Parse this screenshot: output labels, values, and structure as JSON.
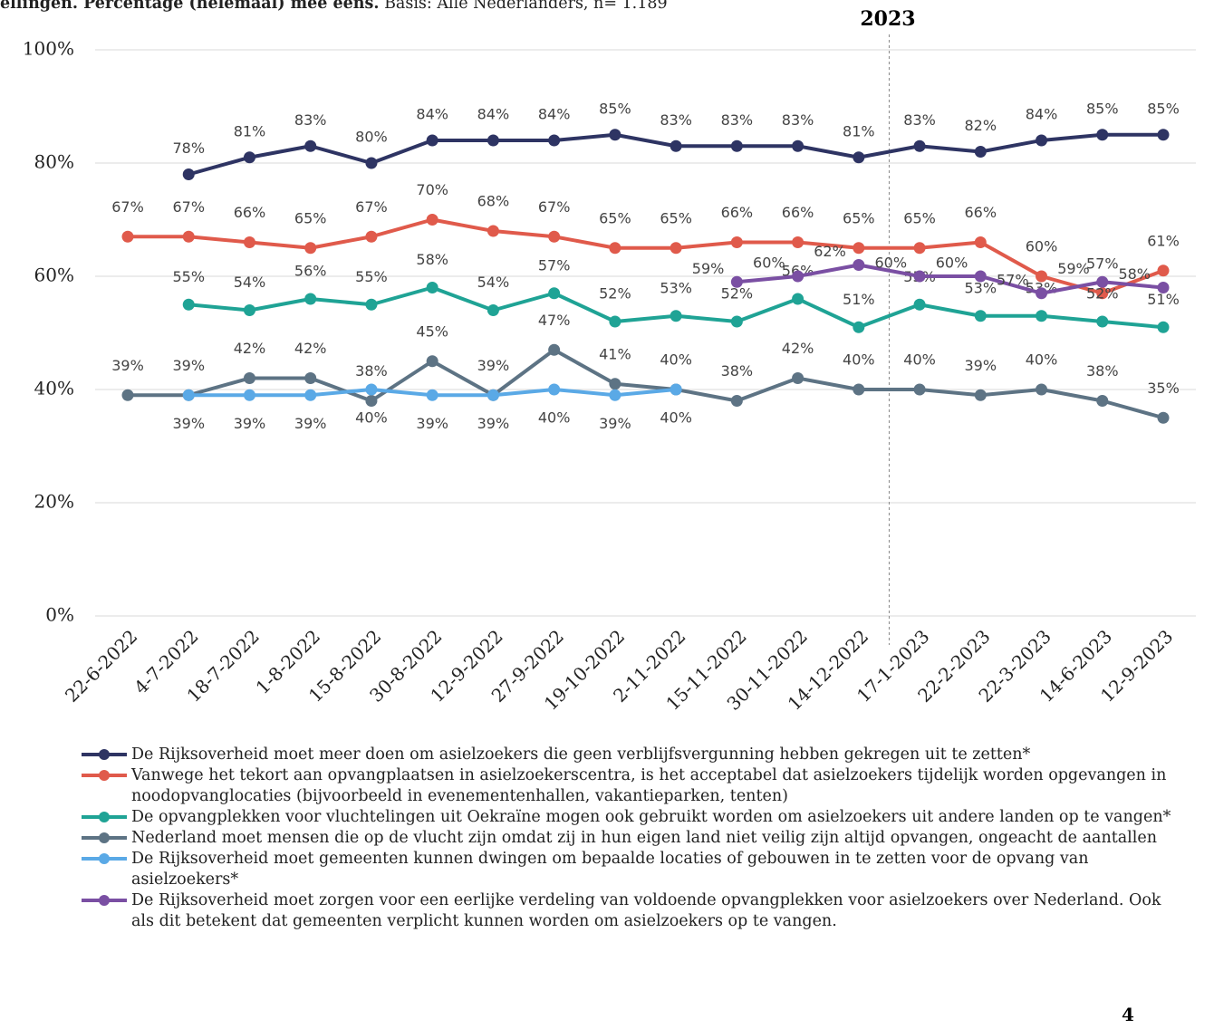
{
  "chart_data": {
    "type": "line",
    "title": "ellingen. Percentage (helemaal) mee eens.",
    "subtitle": "Basis: Alle Nederlanders, n= 1.189",
    "annotation": "2023",
    "page_number": "4",
    "categories": [
      "22-6-2022",
      "4-7-2022",
      "18-7-2022",
      "1-8-2022",
      "15-8-2022",
      "30-8-2022",
      "12-9-2022",
      "27-9-2022",
      "19-10-2022",
      "2-11-2022",
      "15-11-2022",
      "30-11-2022",
      "14-12-2022",
      "17-1-2023",
      "22-2-2023",
      "22-3-2023",
      "14-6-2023",
      "12-9-2023"
    ],
    "ylim": [
      0,
      100
    ],
    "yticks": [
      {
        "value": 0,
        "label": "0%"
      },
      {
        "value": 20,
        "label": "20%"
      },
      {
        "value": 40,
        "label": "40%"
      },
      {
        "value": 60,
        "label": "60%"
      },
      {
        "value": 80,
        "label": "80%"
      },
      {
        "value": 100,
        "label": "100%"
      }
    ],
    "grid": true,
    "series": [
      {
        "name": "De Rijksoverheid moet meer doen om asielzoekers die geen verblijfsvergunning hebben gekregen uit te zetten*",
        "color": "#2e3463",
        "values": [
          null,
          78,
          81,
          83,
          80,
          84,
          84,
          84,
          85,
          83,
          83,
          83,
          81,
          83,
          82,
          84,
          85,
          85
        ],
        "value_labels": [
          null,
          "78%",
          "81%",
          "83%",
          "80%",
          "84%",
          "84%",
          "84%",
          "85%",
          "83%",
          "83%",
          "83%",
          "81%",
          "83%",
          "82%",
          "84%",
          "85%",
          "85%"
        ]
      },
      {
        "name": "Vanwege het tekort aan opvangplaatsen in asielzoekerscentra, is het acceptabel dat asielzoekers tijdelijk worden opgevangen in noodopvanglocaties (bijvoorbeeld in evenementenhallen, vakantieparken, tenten)",
        "color": "#e05a4b",
        "values": [
          67,
          67,
          66,
          65,
          67,
          70,
          68,
          67,
          65,
          65,
          66,
          66,
          65,
          65,
          66,
          60,
          57,
          61
        ],
        "value_labels": [
          "67%",
          "67%",
          "66%",
          "65%",
          "67%",
          "70%",
          "68%",
          "67%",
          "65%",
          "65%",
          "66%",
          "66%",
          "65%",
          "65%",
          "66%",
          "60%",
          "57%",
          "61%"
        ]
      },
      {
        "name": "De opvangplekken voor vluchtelingen uit Oekraïne mogen ook gebruikt worden om asielzoekers uit andere landen op te vangen*",
        "color": "#1fa395",
        "values": [
          null,
          55,
          54,
          56,
          55,
          58,
          54,
          57,
          52,
          53,
          52,
          56,
          51,
          55,
          53,
          53,
          52,
          51
        ],
        "value_labels": [
          null,
          "55%",
          "54%",
          "56%",
          "55%",
          "58%",
          "54%",
          "57%",
          "52%",
          "53%",
          "52%",
          "56%",
          "51%",
          "55%",
          "53%",
          "53%",
          "52%",
          "51%"
        ]
      },
      {
        "name": "Nederland moet mensen die op de vlucht zijn omdat zij in hun eigen land niet veilig zijn altijd opvangen, ongeacht de aantallen",
        "color": "#5d7384",
        "values": [
          39,
          39,
          42,
          42,
          38,
          45,
          39,
          47,
          41,
          40,
          38,
          42,
          40,
          40,
          39,
          40,
          38,
          35
        ],
        "value_labels": [
          "39%",
          "39%",
          "42%",
          "42%",
          "38%",
          "45%",
          "39%",
          "47%",
          "41%",
          "40%",
          "38%",
          "42%",
          "40%",
          "40%",
          "39%",
          "40%",
          "38%",
          "35%"
        ]
      },
      {
        "name": "De Rijksoverheid moet gemeenten kunnen dwingen om bepaalde locaties of gebouwen in te zetten voor de opvang van asielzoekers*",
        "color": "#5aa9e6",
        "values": [
          null,
          39,
          39,
          39,
          40,
          39,
          39,
          40,
          39,
          40,
          null,
          null,
          null,
          null,
          null,
          null,
          null,
          null
        ],
        "value_labels": [
          null,
          "39%",
          "39%",
          "39%",
          "40%",
          "39%",
          "39%",
          "40%",
          "39%",
          "40%",
          null,
          null,
          null,
          null,
          null,
          null,
          null,
          null
        ]
      },
      {
        "name": "De Rijksoverheid moet zorgen voor een eerlijke verdeling van voldoende opvangplekken voor asielzoekers over Nederland. Ook als dit betekent dat gemeenten verplicht kunnen worden om asielzoekers op te vangen.",
        "color": "#7a4fa3",
        "values": [
          null,
          null,
          null,
          null,
          null,
          null,
          null,
          null,
          null,
          null,
          59,
          60,
          62,
          60,
          60,
          57,
          59,
          58
        ],
        "value_labels": [
          null,
          null,
          null,
          null,
          null,
          null,
          null,
          null,
          null,
          null,
          "59%",
          "60%",
          "62%",
          "60%",
          "60%",
          "57%",
          "59%",
          "58%"
        ]
      }
    ]
  }
}
